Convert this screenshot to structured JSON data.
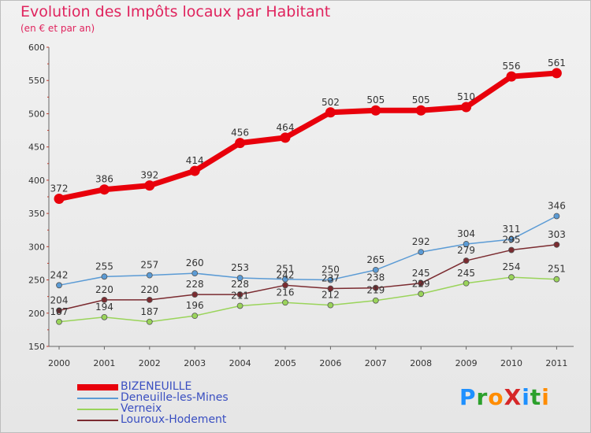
{
  "header": {
    "title": "Evolution des Impôts locaux par Habitant",
    "subtitle": "(en € et par an)"
  },
  "colors": {
    "title": "#e0245e",
    "legend_text": "#3a4fc1"
  },
  "logo": {
    "text": "ProXiti",
    "letter_colors": [
      "#1e90ff",
      "#2ca02c",
      "#ff8c00",
      "#d62728",
      "#1e90ff",
      "#2ca02c",
      "#ff8c00"
    ]
  },
  "chart_data": {
    "type": "line",
    "x": [
      2000,
      2001,
      2002,
      2003,
      2004,
      2005,
      2006,
      2007,
      2008,
      2009,
      2010,
      2011
    ],
    "ylim": [
      150,
      600
    ],
    "yticks": [
      150,
      200,
      250,
      300,
      350,
      400,
      450,
      500,
      550,
      600
    ],
    "grid": false,
    "legend_placement": "bottom-left",
    "series": [
      {
        "name": "BIZENEUILLE",
        "color": "#e8000b",
        "values": [
          372,
          386,
          392,
          414,
          456,
          464,
          502,
          505,
          505,
          510,
          556,
          561
        ]
      },
      {
        "name": "Deneuille-les-Mines",
        "color": "#5b9bd5",
        "values": [
          242,
          255,
          257,
          260,
          253,
          251,
          250,
          265,
          292,
          304,
          311,
          346
        ]
      },
      {
        "name": "Verneix",
        "color": "#9ad45a",
        "values": [
          187,
          194,
          187,
          196,
          211,
          216,
          212,
          219,
          229,
          245,
          254,
          251
        ]
      },
      {
        "name": "Louroux-Hodement",
        "color": "#7b2b30",
        "values": [
          204,
          220,
          220,
          228,
          228,
          242,
          237,
          238,
          245,
          279,
          295,
          303
        ]
      }
    ]
  }
}
